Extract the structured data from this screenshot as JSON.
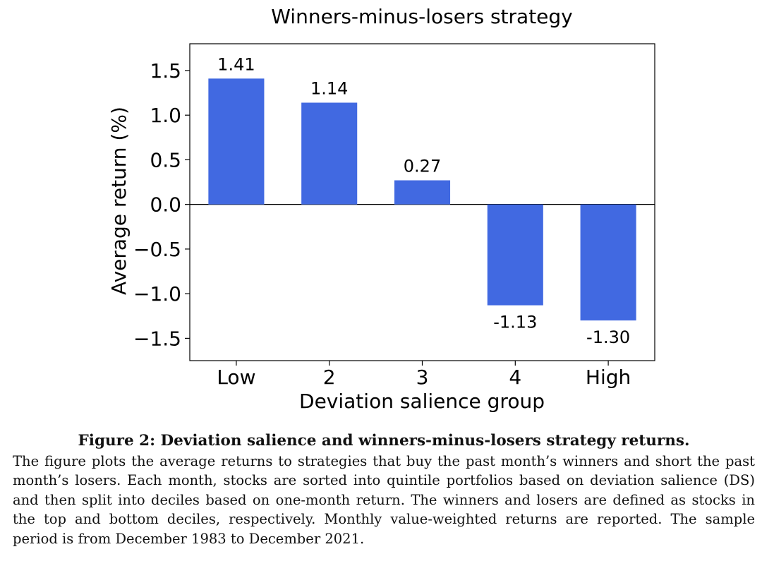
{
  "chart_data": {
    "type": "bar",
    "title": "Winners-minus-losers strategy",
    "xlabel": "Deviation salience group",
    "ylabel": "Average return (%)",
    "categories": [
      "Low",
      "2",
      "3",
      "4",
      "High"
    ],
    "values": [
      1.41,
      1.14,
      0.27,
      -1.13,
      -1.3
    ],
    "value_labels": [
      "1.41",
      "1.14",
      "0.27",
      "-1.13",
      "-1.30"
    ],
    "ylim": [
      -1.75,
      1.8
    ],
    "yticks": [
      1.5,
      1.0,
      0.5,
      0.0,
      -0.5,
      -1.0,
      -1.5
    ],
    "ytick_labels": [
      "1.5",
      "1.0",
      "0.5",
      "0.0",
      "−0.5",
      "−1.0",
      "−1.5"
    ],
    "bar_color": "#4169E1",
    "zero_line": true,
    "grid": false
  },
  "caption": {
    "title": "Figure 2: Deviation salience and winners-minus-losers strategy returns.",
    "body": "The figure plots the average returns to strategies that buy the past month’s winners and short the past month’s losers. Each month, stocks are sorted into quintile portfolios based on deviation salience (DS) and then split into deciles based on one-month return. The winners and losers are defined as stocks in the top and bottom deciles, respectively. Monthly value-weighted returns are reported. The sample period is from December 1983 to December 2021."
  }
}
